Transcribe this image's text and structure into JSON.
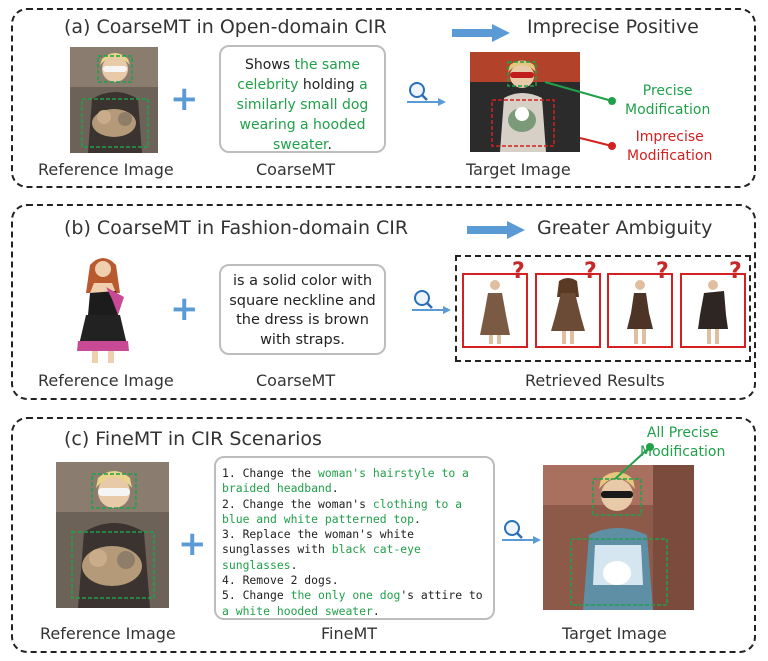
{
  "panel_a": {
    "title": "(a)  CoarseMT in Open-domain CIR",
    "result_label": "Imprecise Positive",
    "ref_caption": "Reference Image",
    "text_caption": "CoarseMT",
    "target_caption": "Target Image",
    "text_parts": [
      "Shows ",
      "the same celebrity",
      " holding ",
      "a similarly small dog wearing a hooded sweater",
      "."
    ],
    "ann_precise": [
      "Precise",
      "Modification"
    ],
    "ann_imprecise": [
      "Imprecise",
      "Modification"
    ]
  },
  "panel_b": {
    "title": "(b)  CoarseMT in Fashion-domain CIR",
    "result_label": "Greater Ambiguity",
    "ref_caption": "Reference Image",
    "text_caption": "CoarseMT",
    "results_caption": "Retrieved Results",
    "text": "is a solid color with square neckline and the dress is brown with straps.",
    "qmarks": [
      "?",
      "?",
      "?",
      "?"
    ]
  },
  "panel_c": {
    "title": "(c)  FineMT in CIR Scenarios",
    "ref_caption": "Reference Image",
    "text_caption": "FineMT",
    "target_caption": "Target Image",
    "ann_all": [
      "All Precise",
      "Modification"
    ],
    "items": [
      {
        "n": "1. ",
        "a": "Change the ",
        "b": "woman's hairstyle to a braided headband",
        "c": "."
      },
      {
        "n": "2. ",
        "a": "Change the woman's ",
        "b": "clothing to a blue and white patterned top",
        "c": "."
      },
      {
        "n": "3. ",
        "a": "Replace the woman's white sunglasses with ",
        "b": "black cat-eye sunglasses",
        "c": "."
      },
      {
        "n": "4. ",
        "a": "Remove 2 dogs.",
        "b": "",
        "c": ""
      },
      {
        "n": "5. ",
        "a": "Change ",
        "b": "the only one dog",
        "c": "'s attire to ",
        "d": "a white hooded sweater",
        "e": "."
      }
    ]
  },
  "colors": {
    "green": "#21a04a",
    "red": "#d42020",
    "arrow_blue": "#5b9bd5"
  },
  "icons": [
    "right-arrow-icon",
    "plus-icon",
    "magnifier-arrow-icon",
    "question-mark-icon"
  ]
}
